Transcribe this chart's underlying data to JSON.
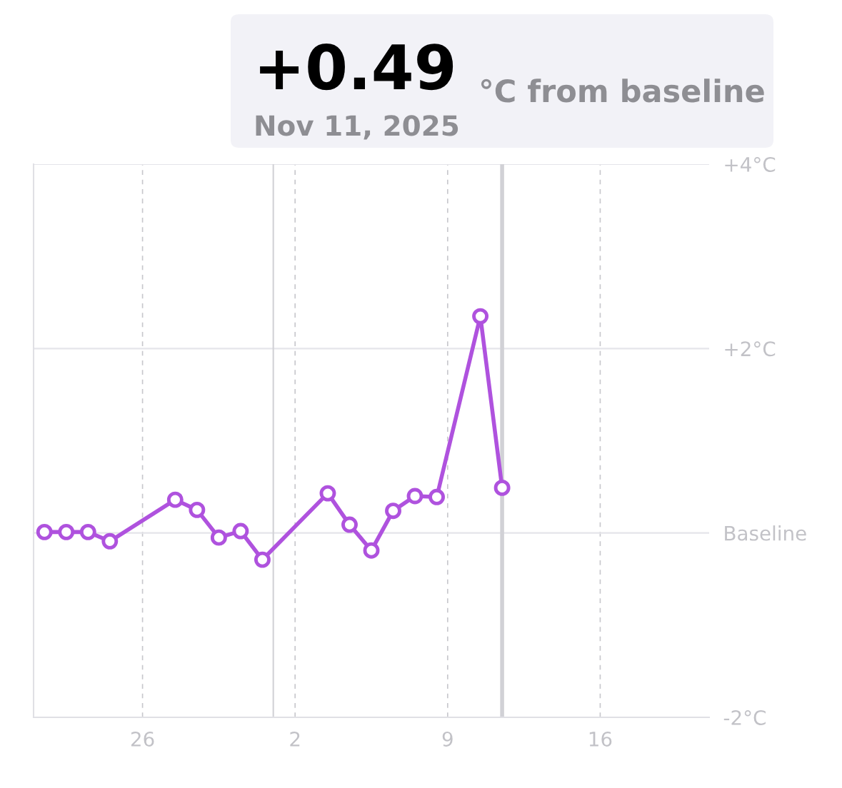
{
  "chart_data": {
    "type": "line",
    "x": [
      "2025-10-21T12:00",
      "2025-10-22T12:00",
      "2025-10-23T12:00",
      "2025-10-24T12:00",
      "2025-10-27T12:00",
      "2025-10-28T12:00",
      "2025-10-29T12:00",
      "2025-10-30T12:00",
      "2025-10-31T12:00",
      "2025-11-03T12:00",
      "2025-11-04T12:00",
      "2025-11-05T12:00",
      "2025-11-06T12:00",
      "2025-11-07T12:00",
      "2025-11-08T12:00",
      "2025-11-10T12:00",
      "2025-11-11T12:00"
    ],
    "series": [
      {
        "color": "#af52de",
        "values": [
          0.01,
          0.01,
          0.01,
          -0.09,
          0.36,
          0.25,
          -0.05,
          0.02,
          -0.29,
          0.43,
          0.09,
          -0.19,
          0.24,
          0.4,
          0.39,
          2.35,
          0.49
        ]
      }
    ],
    "xlim": [
      "2025-10-21",
      "2025-11-21"
    ],
    "xticks": [
      {
        "value": "2025-10-26",
        "label": "26"
      },
      {
        "value": "2025-11-02",
        "label": "2"
      },
      {
        "value": "2025-11-09",
        "label": "9"
      },
      {
        "value": "2025-11-16",
        "label": "16"
      }
    ],
    "ylim": [
      -2,
      4
    ],
    "yticks": [
      {
        "value": -2,
        "label": "-2°C"
      },
      {
        "value": 0,
        "label": "Baseline"
      },
      {
        "value": 2,
        "label": "+2°C"
      },
      {
        "value": 4,
        "label": "+4°C"
      }
    ],
    "grid": true,
    "marker": "circle",
    "line_style": "solid",
    "ref_lines": [
      {
        "axis": "x",
        "value": "2025-11-01",
        "color": "#d1d1d6"
      },
      {
        "axis": "x",
        "value": "2025-11-11T12:00",
        "color": "#d1d1d6"
      }
    ],
    "annotations": [
      "+0.49",
      "°C from baseline",
      "Nov 11, 2025"
    ]
  }
}
